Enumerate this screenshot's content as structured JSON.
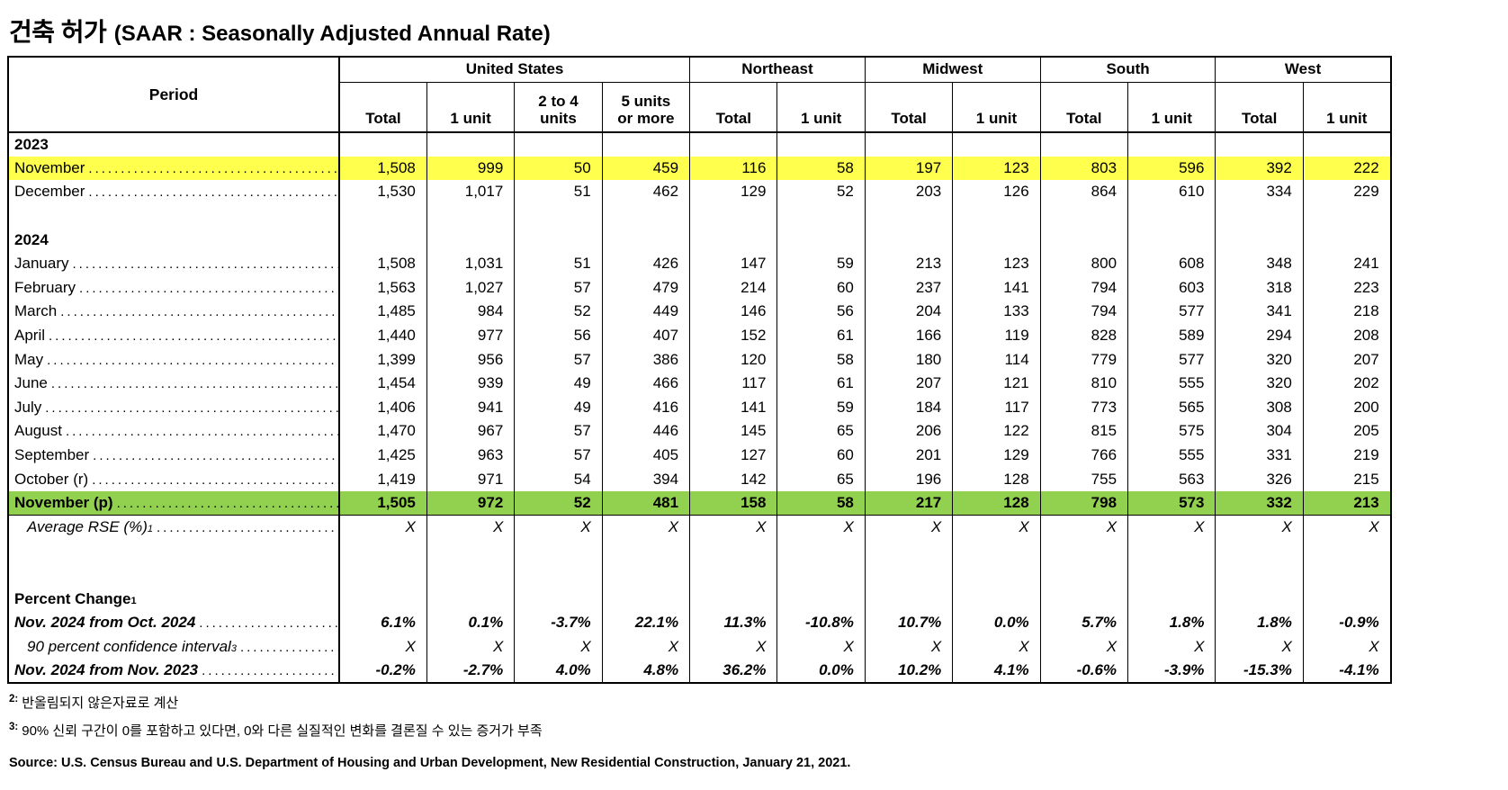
{
  "title": {
    "korean": "건축 허가",
    "english": "(SAAR : Seasonally Adjusted Annual Rate)"
  },
  "colors": {
    "highlight_yellow": "#ffff4d",
    "highlight_green": "#92d050"
  },
  "table": {
    "period_header": "Period",
    "groups": [
      {
        "label": "United States",
        "columns": [
          "Total",
          "1 unit",
          "2 to 4\nunits",
          "5 units\nor more"
        ]
      },
      {
        "label": "Northeast",
        "columns": [
          "Total",
          "1 unit"
        ]
      },
      {
        "label": "Midwest",
        "columns": [
          "Total",
          "1 unit"
        ]
      },
      {
        "label": "South",
        "columns": [
          "Total",
          "1 unit"
        ]
      },
      {
        "label": "West",
        "columns": [
          "Total",
          "1 unit"
        ]
      }
    ],
    "rows": [
      {
        "type": "year",
        "label": "2023"
      },
      {
        "type": "data",
        "label": "November",
        "highlight": "yellow",
        "values": [
          "1,508",
          "999",
          "50",
          "459",
          "116",
          "58",
          "197",
          "123",
          "803",
          "596",
          "392",
          "222"
        ]
      },
      {
        "type": "data",
        "label": "December",
        "values": [
          "1,530",
          "1,017",
          "51",
          "462",
          "129",
          "52",
          "203",
          "126",
          "864",
          "610",
          "334",
          "229"
        ]
      },
      {
        "type": "blank"
      },
      {
        "type": "year",
        "label": "2024"
      },
      {
        "type": "data",
        "label": "January",
        "values": [
          "1,508",
          "1,031",
          "51",
          "426",
          "147",
          "59",
          "213",
          "123",
          "800",
          "608",
          "348",
          "241"
        ]
      },
      {
        "type": "data",
        "label": "February",
        "values": [
          "1,563",
          "1,027",
          "57",
          "479",
          "214",
          "60",
          "237",
          "141",
          "794",
          "603",
          "318",
          "223"
        ]
      },
      {
        "type": "data",
        "label": "March",
        "values": [
          "1,485",
          "984",
          "52",
          "449",
          "146",
          "56",
          "204",
          "133",
          "794",
          "577",
          "341",
          "218"
        ]
      },
      {
        "type": "data",
        "label": "April",
        "values": [
          "1,440",
          "977",
          "56",
          "407",
          "152",
          "61",
          "166",
          "119",
          "828",
          "589",
          "294",
          "208"
        ]
      },
      {
        "type": "data",
        "label": "May",
        "values": [
          "1,399",
          "956",
          "57",
          "386",
          "120",
          "58",
          "180",
          "114",
          "779",
          "577",
          "320",
          "207"
        ]
      },
      {
        "type": "data",
        "label": "June",
        "values": [
          "1,454",
          "939",
          "49",
          "466",
          "117",
          "61",
          "207",
          "121",
          "810",
          "555",
          "320",
          "202"
        ]
      },
      {
        "type": "data",
        "label": "July",
        "values": [
          "1,406",
          "941",
          "49",
          "416",
          "141",
          "59",
          "184",
          "117",
          "773",
          "565",
          "308",
          "200"
        ]
      },
      {
        "type": "data",
        "label": "August",
        "values": [
          "1,470",
          "967",
          "57",
          "446",
          "145",
          "65",
          "206",
          "122",
          "815",
          "575",
          "304",
          "205"
        ]
      },
      {
        "type": "data",
        "label": "September",
        "values": [
          "1,425",
          "963",
          "57",
          "405",
          "127",
          "60",
          "201",
          "129",
          "766",
          "555",
          "331",
          "219"
        ]
      },
      {
        "type": "data",
        "label": "October (r)",
        "values": [
          "1,419",
          "971",
          "54",
          "394",
          "142",
          "65",
          "196",
          "128",
          "755",
          "563",
          "326",
          "215"
        ]
      },
      {
        "type": "data",
        "label": "November (p)",
        "highlight": "green",
        "bold": true,
        "values": [
          "1,505",
          "972",
          "52",
          "481",
          "158",
          "58",
          "217",
          "128",
          "798",
          "573",
          "332",
          "213"
        ]
      },
      {
        "type": "data",
        "label": "Average RSE (%)",
        "sup": "1",
        "italic": true,
        "indent": true,
        "values": [
          "X",
          "X",
          "X",
          "X",
          "X",
          "X",
          "X",
          "X",
          "X",
          "X",
          "X",
          "X"
        ]
      },
      {
        "type": "blank"
      },
      {
        "type": "blank"
      },
      {
        "type": "section",
        "label": "Percent Change",
        "sup": "1"
      },
      {
        "type": "data",
        "label": "Nov. 2024 from Oct. 2024",
        "bold": true,
        "italic": true,
        "values": [
          "6.1%",
          "0.1%",
          "-3.7%",
          "22.1%",
          "11.3%",
          "-10.8%",
          "10.7%",
          "0.0%",
          "5.7%",
          "1.8%",
          "1.8%",
          "-0.9%"
        ]
      },
      {
        "type": "data",
        "label": "90 percent confidence interval",
        "sup": "3",
        "italic": true,
        "indent": true,
        "values": [
          "X",
          "X",
          "X",
          "X",
          "X",
          "X",
          "X",
          "X",
          "X",
          "X",
          "X",
          "X"
        ]
      },
      {
        "type": "data",
        "label": "Nov. 2024 from Nov. 2023",
        "bold": true,
        "italic": true,
        "values": [
          "-0.2%",
          "-2.7%",
          "4.0%",
          "4.8%",
          "36.2%",
          "0.0%",
          "10.2%",
          "4.1%",
          "-0.6%",
          "-3.9%",
          "-15.3%",
          "-4.1%"
        ]
      }
    ]
  },
  "footnotes": [
    {
      "sup": "2:",
      "text": "반올림되지 않은자료로 계산"
    },
    {
      "sup": "3:",
      "text": "90% 신뢰 구간이 0를 포함하고 있다면, 0와 다른 실질적인 변화를 결론질 수 있는 증거가 부족"
    }
  ],
  "source": "Source: U.S. Census Bureau and U.S. Department of Housing and Urban Development, New Residential Construction, January 21, 2021."
}
